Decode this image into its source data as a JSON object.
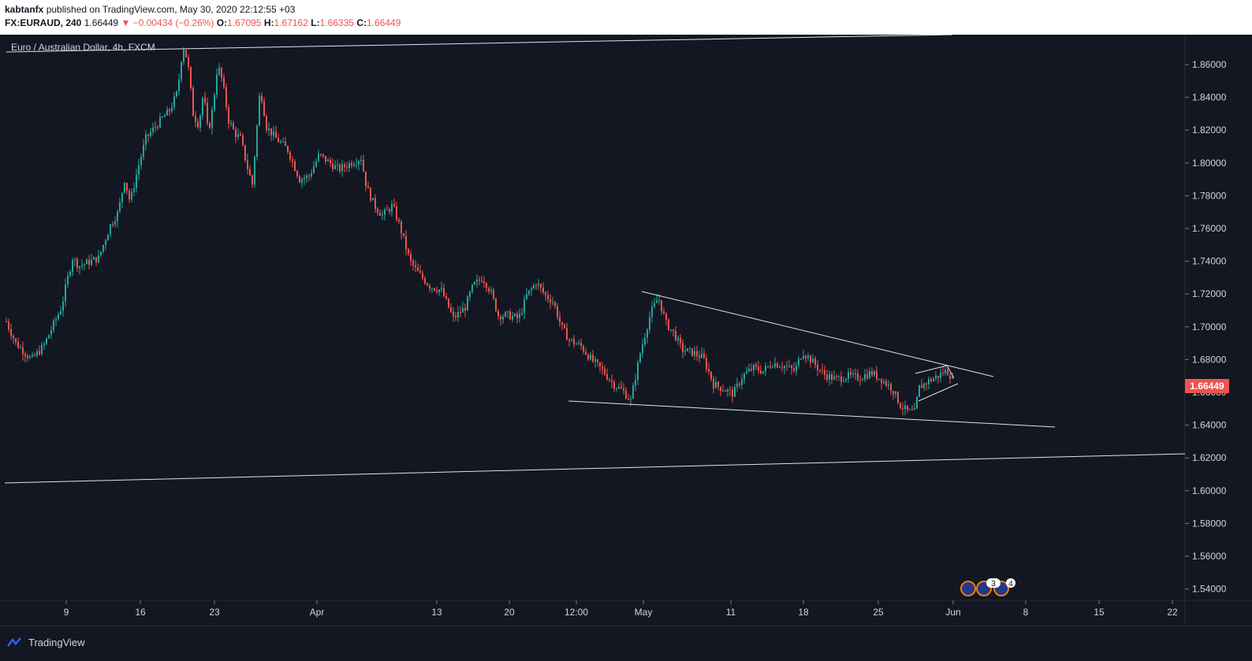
{
  "header": {
    "author": "kabtanfx",
    "published": "published on TradingView.com, May 30, 2020 22:12:55 +03",
    "symbol": "FX:EURAUD, 240",
    "last": "1.66449",
    "change": "−0.00434 (−0.26%)",
    "o_label": "O:",
    "o": "1.67095",
    "h_label": "H:",
    "h": "1.67162",
    "l_label": "L:",
    "l": "1.66335",
    "c_label": "C:",
    "c": "1.66449"
  },
  "footer": {
    "brand": "TradingView"
  },
  "colors": {
    "up": "#26a69a",
    "down": "#ef5350",
    "background": "#131722",
    "trendline": "#e0e3eb"
  },
  "chart_data": {
    "type": "candlestick",
    "title": "Euro / Australian Dollar, 4h, FXCM",
    "y_ticks": [
      "1.86000",
      "1.84000",
      "1.82000",
      "1.80000",
      "1.78000",
      "1.76000",
      "1.74000",
      "1.72000",
      "1.70000",
      "1.68000",
      "1.66000",
      "1.64000",
      "1.62000",
      "1.60000",
      "1.58000",
      "1.56000",
      "1.54000"
    ],
    "x_ticks": [
      "9",
      "16",
      "23",
      "Apr",
      "13",
      "20",
      "12:00",
      "May",
      "11",
      "18",
      "25",
      "Jun",
      "8",
      "15",
      "22"
    ],
    "ylim": [
      1.532,
      1.882
    ],
    "current_price": "1.66449",
    "event_badges": [
      "3",
      "3",
      "4"
    ],
    "price_path": [
      [
        0,
        1.712
      ],
      [
        20,
        1.69
      ],
      [
        40,
        1.68
      ],
      [
        55,
        1.688
      ],
      [
        78,
        1.712
      ],
      [
        85,
        1.728
      ],
      [
        92,
        1.742
      ],
      [
        100,
        1.737
      ],
      [
        125,
        1.742
      ],
      [
        140,
        1.762
      ],
      [
        150,
        1.77
      ],
      [
        158,
        1.79
      ],
      [
        165,
        1.776
      ],
      [
        175,
        1.797
      ],
      [
        185,
        1.815
      ],
      [
        200,
        1.824
      ],
      [
        215,
        1.832
      ],
      [
        225,
        1.843
      ],
      [
        232,
        1.872
      ],
      [
        238,
        1.862
      ],
      [
        245,
        1.83
      ],
      [
        252,
        1.823
      ],
      [
        258,
        1.843
      ],
      [
        264,
        1.818
      ],
      [
        270,
        1.834
      ],
      [
        276,
        1.86
      ],
      [
        282,
        1.85
      ],
      [
        290,
        1.826
      ],
      [
        298,
        1.818
      ],
      [
        305,
        1.815
      ],
      [
        315,
        1.795
      ],
      [
        320,
        1.787
      ],
      [
        330,
        1.846
      ],
      [
        338,
        1.822
      ],
      [
        350,
        1.815
      ],
      [
        365,
        1.808
      ],
      [
        380,
        1.79
      ],
      [
        392,
        1.792
      ],
      [
        405,
        1.805
      ],
      [
        418,
        1.8
      ],
      [
        430,
        1.796
      ],
      [
        445,
        1.8
      ],
      [
        458,
        1.803
      ],
      [
        465,
        1.785
      ],
      [
        475,
        1.774
      ],
      [
        485,
        1.768
      ],
      [
        498,
        1.774
      ],
      [
        508,
        1.76
      ],
      [
        520,
        1.74
      ],
      [
        530,
        1.733
      ],
      [
        545,
        1.725
      ],
      [
        560,
        1.722
      ],
      [
        575,
        1.705
      ],
      [
        590,
        1.712
      ],
      [
        600,
        1.725
      ],
      [
        612,
        1.73
      ],
      [
        622,
        1.722
      ],
      [
        632,
        1.707
      ],
      [
        645,
        1.707
      ],
      [
        658,
        1.705
      ],
      [
        668,
        1.719
      ],
      [
        680,
        1.727
      ],
      [
        692,
        1.719
      ],
      [
        702,
        1.715
      ],
      [
        712,
        1.7
      ],
      [
        722,
        1.692
      ],
      [
        737,
        1.688
      ],
      [
        750,
        1.68
      ],
      [
        765,
        1.673
      ],
      [
        778,
        1.665
      ],
      [
        790,
        1.661
      ],
      [
        800,
        1.655
      ],
      [
        812,
        1.684
      ],
      [
        825,
        1.708
      ],
      [
        835,
        1.718
      ],
      [
        845,
        1.702
      ],
      [
        855,
        1.696
      ],
      [
        865,
        1.686
      ],
      [
        880,
        1.684
      ],
      [
        892,
        1.681
      ],
      [
        905,
        1.665
      ],
      [
        918,
        1.662
      ],
      [
        930,
        1.659
      ],
      [
        942,
        1.67
      ],
      [
        955,
        1.675
      ],
      [
        968,
        1.673
      ],
      [
        980,
        1.678
      ],
      [
        995,
        1.676
      ],
      [
        1008,
        1.673
      ],
      [
        1018,
        1.685
      ],
      [
        1030,
        1.679
      ],
      [
        1045,
        1.671
      ],
      [
        1060,
        1.668
      ],
      [
        1075,
        1.67
      ],
      [
        1090,
        1.669
      ],
      [
        1105,
        1.672
      ],
      [
        1118,
        1.668
      ],
      [
        1132,
        1.662
      ],
      [
        1142,
        1.652
      ],
      [
        1152,
        1.648
      ],
      [
        1160,
        1.648
      ],
      [
        1166,
        1.663
      ],
      [
        1178,
        1.667
      ],
      [
        1190,
        1.67
      ],
      [
        1198,
        1.673
      ],
      [
        1204,
        1.672
      ],
      [
        1210,
        1.6645
      ]
    ]
  }
}
